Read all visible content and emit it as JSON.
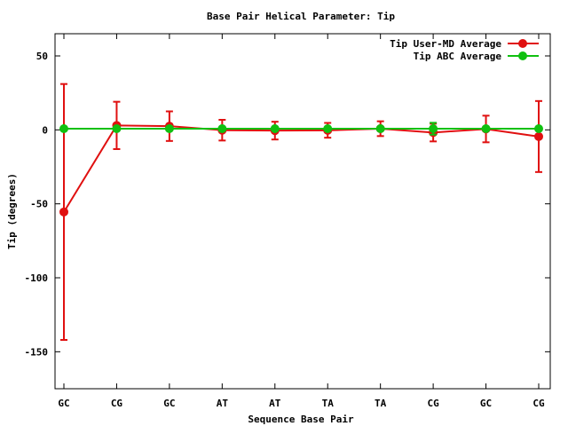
{
  "chart_data": {
    "type": "line",
    "title": "Base Pair Helical Parameter: Tip",
    "xlabel": "Sequence Base Pair",
    "ylabel": "Tip (degrees)",
    "categories": [
      "GC",
      "CG",
      "GC",
      "AT",
      "AT",
      "TA",
      "TA",
      "CG",
      "GC",
      "CG"
    ],
    "ylim": [
      -175,
      65
    ],
    "yticks": [
      50,
      0,
      -50,
      -100,
      -150
    ],
    "ytick_labels": [
      "50",
      "0",
      "-50",
      "-100",
      "-150"
    ],
    "grid": false,
    "legend_position": "top-right",
    "series": [
      {
        "name": "Tip User-MD Average",
        "color": "#e01010",
        "values": [
          -55.5,
          3.0,
          2.5,
          -0.2,
          -0.5,
          -0.3,
          0.8,
          -1.8,
          0.6,
          -4.5
        ],
        "error": [
          86.5,
          16.0,
          10.0,
          7.0,
          6.0,
          5.0,
          5.0,
          6.0,
          9.0,
          24.0
        ]
      },
      {
        "name": "Tip ABC Average",
        "color": "#10c010",
        "values": [
          0.8,
          0.8,
          0.8,
          0.8,
          0.8,
          0.8,
          0.8,
          0.8,
          0.8,
          0.8
        ],
        "error": [
          0,
          0,
          0,
          0,
          0,
          0,
          0,
          4.0,
          0,
          0
        ]
      }
    ]
  }
}
